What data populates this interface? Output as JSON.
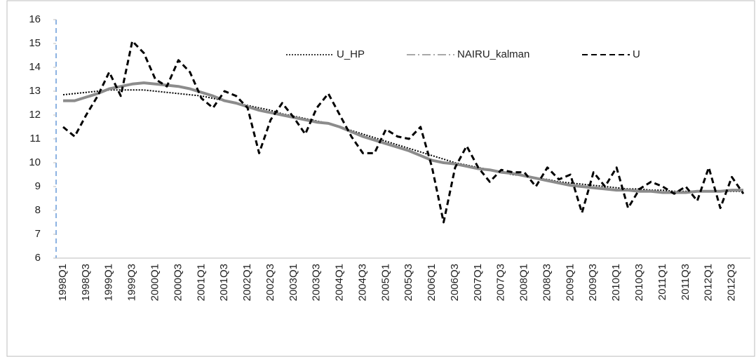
{
  "chart_data": {
    "type": "line",
    "categories": [
      "1998Q1",
      null,
      "1998Q3",
      null,
      "1999Q1",
      null,
      "1999Q3",
      null,
      "2000Q1",
      null,
      "2000Q3",
      null,
      "2001Q1",
      null,
      "2001Q3",
      null,
      "2002Q1",
      null,
      "2002Q3",
      null,
      "2003Q1",
      null,
      "2003Q3",
      null,
      "2004Q1",
      null,
      "2004Q3",
      null,
      "2005Q1",
      null,
      "2005Q3",
      null,
      "2006Q1",
      null,
      "2006Q3",
      null,
      "2007Q1",
      null,
      "2007Q3",
      null,
      "2008Q1",
      null,
      "2008Q3",
      null,
      "2009Q1",
      null,
      "2009Q3",
      null,
      "2010Q1",
      null,
      "2010Q3",
      null,
      "2011Q1",
      null,
      "2011Q3",
      null,
      "2012Q1",
      null,
      "2012Q3",
      null
    ],
    "series": [
      {
        "name": "U_HP",
        "color": "#000000",
        "dash": "dotted",
        "values": [
          12.85,
          12.9,
          12.95,
          13.0,
          13.05,
          13.05,
          13.05,
          13.05,
          13.0,
          12.95,
          12.9,
          12.85,
          12.8,
          12.7,
          12.6,
          12.5,
          12.4,
          12.3,
          12.2,
          12.05,
          11.95,
          11.85,
          11.75,
          11.65,
          11.5,
          11.35,
          11.2,
          11.05,
          10.9,
          10.75,
          10.6,
          10.45,
          10.3,
          10.15,
          10.0,
          9.9,
          9.8,
          9.7,
          9.6,
          9.5,
          9.45,
          9.35,
          9.3,
          9.2,
          9.15,
          9.1,
          9.05,
          9.0,
          8.95,
          8.9,
          8.9,
          8.85,
          8.85,
          8.8,
          8.8,
          8.8,
          8.8,
          8.8,
          8.8,
          8.8
        ]
      },
      {
        "name": "NAIRU_kalman",
        "color": "#8c8c8c",
        "dash": "dashdot",
        "values": [
          12.6,
          12.6,
          12.75,
          12.9,
          13.1,
          13.2,
          13.3,
          13.35,
          13.3,
          13.25,
          13.2,
          13.1,
          12.95,
          12.8,
          12.6,
          12.5,
          12.35,
          12.2,
          12.1,
          12.0,
          11.9,
          11.8,
          11.7,
          11.65,
          11.5,
          11.3,
          11.1,
          10.95,
          10.8,
          10.65,
          10.5,
          10.3,
          10.1,
          10.0,
          9.95,
          9.85,
          9.75,
          9.7,
          9.6,
          9.55,
          9.45,
          9.35,
          9.25,
          9.15,
          9.05,
          9.0,
          8.95,
          8.9,
          8.85,
          8.85,
          8.8,
          8.8,
          8.75,
          8.75,
          8.75,
          8.8,
          8.8,
          8.8,
          8.85,
          8.85
        ]
      },
      {
        "name": "U",
        "color": "#000000",
        "dash": "dashed",
        "values": [
          11.5,
          11.1,
          12.0,
          12.8,
          13.8,
          12.8,
          15.1,
          14.6,
          13.5,
          13.2,
          14.3,
          13.8,
          12.7,
          12.3,
          13.0,
          12.8,
          12.3,
          10.4,
          11.8,
          12.5,
          11.9,
          11.2,
          12.3,
          12.9,
          12.0,
          11.1,
          10.4,
          10.4,
          11.4,
          11.1,
          11.0,
          11.5,
          9.8,
          7.5,
          9.8,
          10.7,
          9.8,
          9.2,
          9.7,
          9.6,
          9.6,
          9.0,
          9.8,
          9.3,
          9.5,
          7.9,
          9.6,
          9.0,
          9.8,
          8.1,
          8.9,
          9.2,
          9.0,
          8.7,
          9.0,
          8.4,
          9.8,
          8.1,
          9.4,
          8.7
        ]
      }
    ],
    "ylim": [
      6,
      16
    ],
    "yticks": [
      6,
      7,
      8,
      9,
      10,
      11,
      12,
      13,
      14,
      15,
      16
    ],
    "grid": false,
    "legend": "top"
  }
}
